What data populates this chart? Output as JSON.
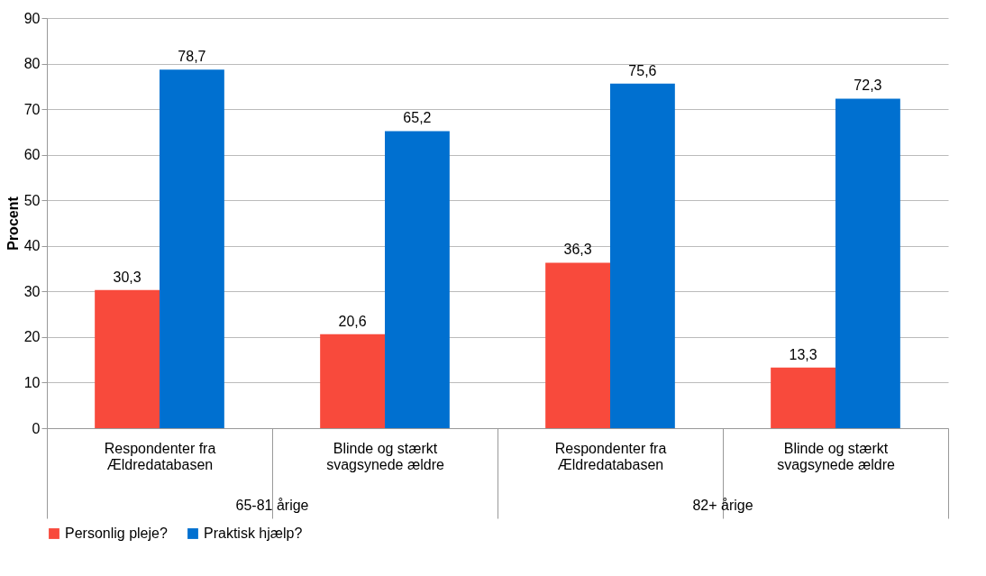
{
  "chart_data": {
    "type": "bar",
    "ylabel": "Procent",
    "categories": [
      "Respondenter fra Ældredatabasen",
      "Blinde og stærkt svagsynede ældre",
      "Respondenter fra Ældredatabasen",
      "Blinde og stærkt svagsynede ældre"
    ],
    "series": [
      {
        "name": "Personlig pleje?",
        "color": "#f84a3c",
        "values": [
          30.3,
          20.6,
          36.3,
          13.3
        ],
        "value_labels": [
          "30,3",
          "20,6",
          "36,3",
          "13,3"
        ]
      },
      {
        "name": "Praktisk hjælp?",
        "color": "#0070d0",
        "values": [
          78.7,
          65.2,
          75.6,
          72.3
        ],
        "value_labels": [
          "78,7",
          "65,2",
          "75,6",
          "72,3"
        ]
      }
    ],
    "annotations": [
      "65-81 årige",
      "82+ årige"
    ],
    "ylim": [
      0,
      90
    ],
    "yticks": [
      0,
      10,
      20,
      30,
      40,
      50,
      60,
      70,
      80,
      90
    ],
    "grid": "y",
    "legend": "bottom"
  }
}
